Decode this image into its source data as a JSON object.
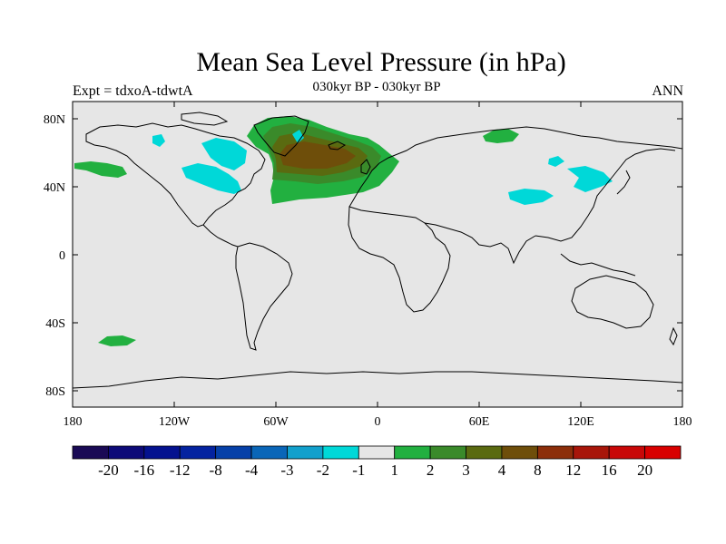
{
  "title": "Mean Sea Level Pressure (in hPa)",
  "subtitle": "030kyr BP - 030kyr BP",
  "left_label": "Expt = tdxoA-tdwtA",
  "right_label": "ANN",
  "colors": {
    "ocean_background": "#e6e6e6",
    "coastline": "#000000",
    "contour_neg1": "#00d8d8",
    "contour_pos1": "#22b040",
    "contour_pos2": "#3a8a2a",
    "contour_pos3": "#5a6a10",
    "contour_pos4": "#6e4e0a"
  },
  "map": {
    "projection": "cylindrical-equidistant",
    "lon_range": [
      -180,
      180
    ],
    "lat_range": [
      -90,
      90
    ],
    "x_ticks": [
      "180",
      "120W",
      "60W",
      "0",
      "60E",
      "120E",
      "180"
    ],
    "y_ticks": [
      "80N",
      "40N",
      "0",
      "40S",
      "80S"
    ]
  },
  "colorbar": {
    "labels": [
      "-20",
      "-16",
      "-12",
      "-8",
      "-4",
      "-3",
      "-2",
      "-1",
      "1",
      "2",
      "3",
      "4",
      "8",
      "12",
      "16",
      "20"
    ],
    "colors": [
      "#1a0a55",
      "#0d0a78",
      "#04128f",
      "#0423a0",
      "#0640a8",
      "#0a66b8",
      "#12a0cc",
      "#00d8d8",
      "#e6e6e6",
      "#22b040",
      "#3a8a2a",
      "#5a6a10",
      "#6e4e0a",
      "#8c2e0a",
      "#a8160a",
      "#c80808",
      "#d80000"
    ]
  }
}
